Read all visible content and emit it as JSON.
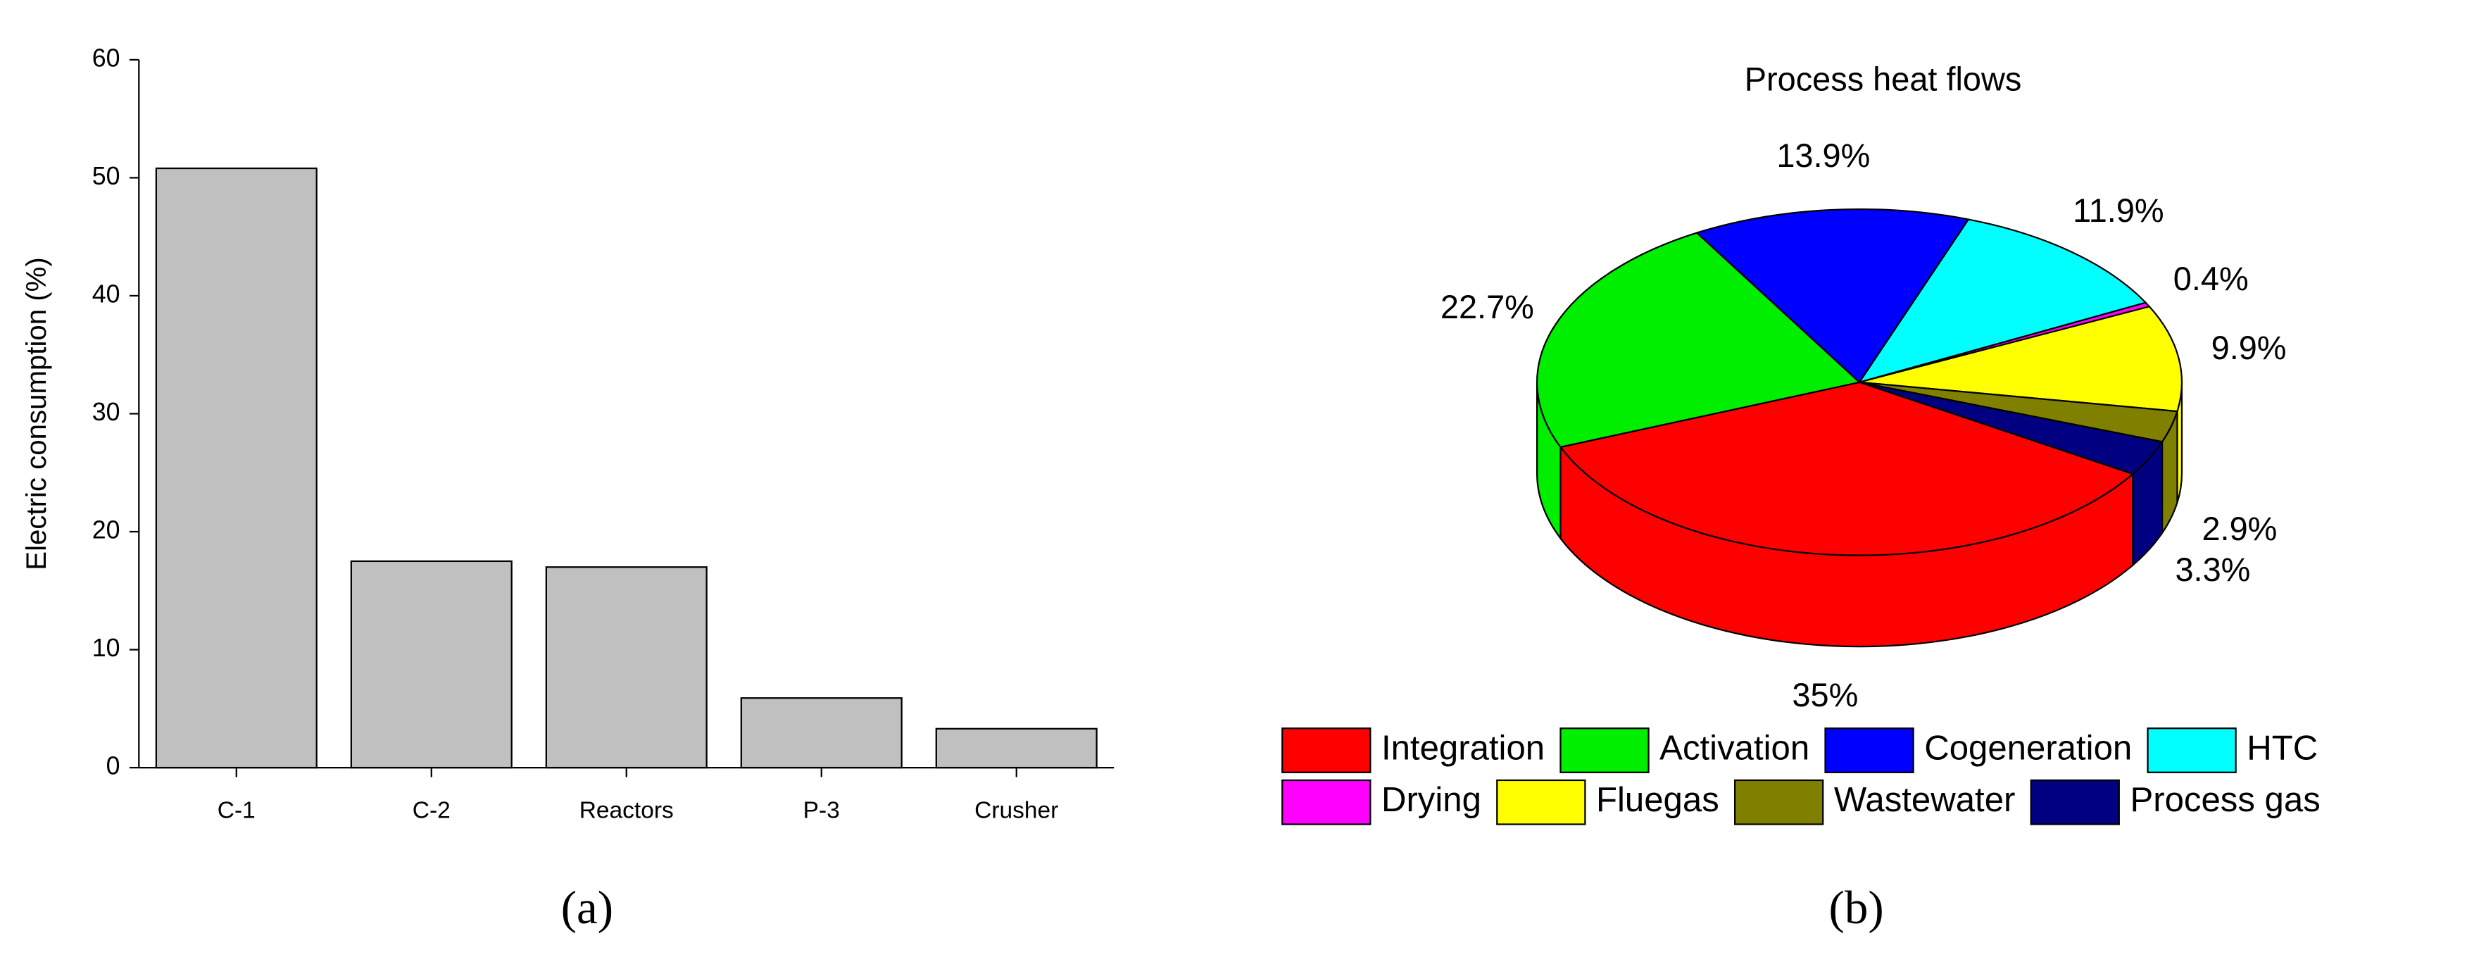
{
  "chart_data": [
    {
      "type": "bar",
      "y_label": "Electric consumption (%)",
      "caption": "(a)",
      "categories": [
        "C-1",
        "C-2",
        "Reactors",
        "P-3",
        "Crusher"
      ],
      "values": [
        50.8,
        17.5,
        17,
        5.9,
        3.3
      ],
      "color": "#c0c0c0",
      "ylim": [
        0,
        60
      ],
      "yticks": [
        0,
        10,
        20,
        30,
        40,
        50,
        60
      ]
    },
    {
      "type": "pie",
      "title": "Process heat flows",
      "caption": "(b)",
      "categories": [
        "Integration",
        "Activation",
        "Cogeneration",
        "HTC",
        "Drying",
        "Fluegas",
        "Wastewater",
        "Process gas"
      ],
      "values": [
        35,
        22.7,
        13.9,
        11.9,
        0.4,
        9.9,
        2.9,
        3.3
      ],
      "value_labels": [
        "35%",
        "22.7%",
        "13.9%",
        "11.9%",
        "0.4%",
        "9.9%",
        "2.9%",
        "3.3%"
      ],
      "colors": [
        "#ff0000",
        "#00ee00",
        "#0000ff",
        "#00ffff",
        "#ff00ff",
        "#ffff00",
        "#808000",
        "#000080"
      ]
    }
  ]
}
